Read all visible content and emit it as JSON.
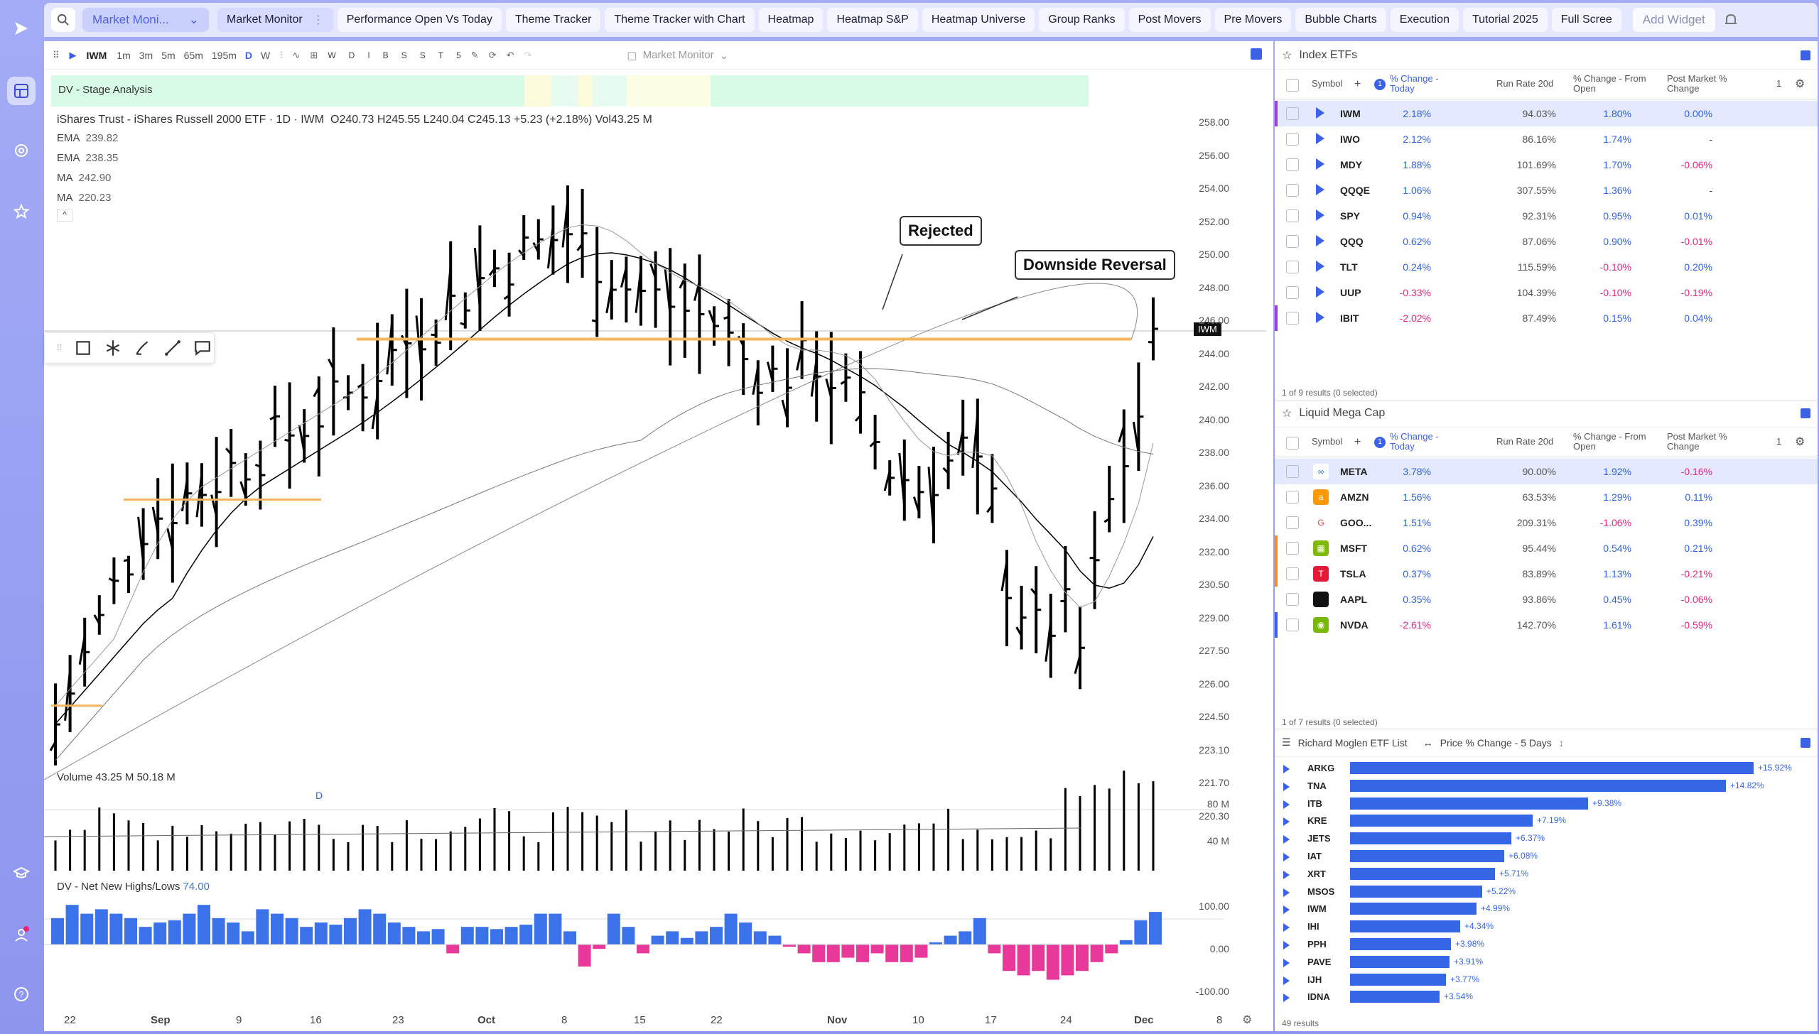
{
  "colors": {
    "accent": "#3b62e6",
    "positive": "#2f62e6",
    "negative": "#e8267c",
    "orange_level": "#f5b55e"
  },
  "rail": {
    "icons": [
      "logo-icon",
      "dashboard-icon",
      "activity-icon",
      "star-icon",
      "graduation-icon",
      "user-crown-icon",
      "help-icon"
    ]
  },
  "topbar": {
    "layout": "Market Moni...",
    "tabs": [
      "Market Monitor",
      "Performance Open Vs Today",
      "Theme Tracker",
      "Theme Tracker with Chart",
      "Heatmap",
      "Heatmap S&P",
      "Heatmap Universe",
      "Group Ranks",
      "Post Movers",
      "Pre Movers",
      "Bubble Charts",
      "Execution",
      "Tutorial 2025",
      "Full Scree"
    ],
    "add_widget": "Add Widget"
  },
  "chart": {
    "toolbar": {
      "symbol": "IWM",
      "intervals": [
        "1m",
        "3m",
        "5m",
        "65m",
        "195m",
        "D",
        "W"
      ],
      "letters": [
        "W",
        "D",
        "I",
        "B",
        "S",
        "S",
        "T",
        "5"
      ],
      "layout_name": "Market Monitor"
    },
    "stage_label": "DV - Stage Analysis",
    "title": "iShares Trust - iShares Russell 2000 ETF · 1D · IWM",
    "ohlc": "O240.73  H245.55  L240.04  C245.13  +5.23 (+2.18%)  Vol43.25 M",
    "indicators": [
      {
        "name": "EMA",
        "value": "239.82"
      },
      {
        "name": "EMA",
        "value": "238.35"
      },
      {
        "name": "MA",
        "value": "242.90"
      },
      {
        "name": "MA",
        "value": "220.23"
      }
    ],
    "callouts": {
      "rejected": "Rejected",
      "reversal": "Downside Reversal"
    },
    "symbol_tag": "IWM",
    "d_marker": "D",
    "volume_label": "Volume  43.25 M  50.18 M",
    "nnh_label": "DV - Net New Highs/Lows",
    "nnh_value": "74.00",
    "y_ticks": [
      "258.00",
      "256.00",
      "254.00",
      "252.00",
      "250.00",
      "248.00",
      "246.00",
      "244.00",
      "242.00",
      "240.00",
      "238.00",
      "236.00",
      "234.00",
      "232.00",
      "230.50",
      "229.00",
      "227.50",
      "226.00",
      "224.50",
      "223.10",
      "221.70",
      "220.30"
    ],
    "vol_ticks": [
      "80 M",
      "40 M"
    ],
    "nnh_ticks": [
      "100.00",
      "0.00",
      "-100.00"
    ],
    "x_ticks": [
      {
        "t": "22",
        "b": false
      },
      {
        "t": "Sep",
        "b": true
      },
      {
        "t": "9",
        "b": false
      },
      {
        "t": "16",
        "b": false
      },
      {
        "t": "23",
        "b": false
      },
      {
        "t": "Oct",
        "b": true
      },
      {
        "t": "8",
        "b": false
      },
      {
        "t": "15",
        "b": false
      },
      {
        "t": "22",
        "b": false
      },
      {
        "t": "Nov",
        "b": true
      },
      {
        "t": "10",
        "b": false
      },
      {
        "t": "17",
        "b": false
      },
      {
        "t": "24",
        "b": false
      },
      {
        "t": "Dec",
        "b": true
      },
      {
        "t": "8",
        "b": false
      }
    ]
  },
  "index_etfs": {
    "title": "Index ETFs",
    "headers": {
      "symbol": "Symbol",
      "pct": "% Change - Today",
      "rr": "Run Rate 20d",
      "fo": "% Change - From Open",
      "pm": "Post Market % Change",
      "count": "1"
    },
    "rows": [
      {
        "sym": "IWM",
        "pct": "2.18%",
        "rr": "94.03%",
        "fo": "1.80%",
        "pm": "0.00%"
      },
      {
        "sym": "IWO",
        "pct": "2.12%",
        "rr": "86.16%",
        "fo": "1.74%",
        "pm": "-"
      },
      {
        "sym": "MDY",
        "pct": "1.88%",
        "rr": "101.69%",
        "fo": "1.70%",
        "pm": "-0.06%"
      },
      {
        "sym": "QQQE",
        "pct": "1.06%",
        "rr": "307.55%",
        "fo": "1.36%",
        "pm": "-"
      },
      {
        "sym": "SPY",
        "pct": "0.94%",
        "rr": "92.31%",
        "fo": "0.95%",
        "pm": "0.01%"
      },
      {
        "sym": "QQQ",
        "pct": "0.62%",
        "rr": "87.06%",
        "fo": "0.90%",
        "pm": "-0.01%"
      },
      {
        "sym": "TLT",
        "pct": "0.24%",
        "rr": "115.59%",
        "fo": "-0.10%",
        "pm": "0.20%"
      },
      {
        "sym": "UUP",
        "pct": "-0.33%",
        "rr": "104.39%",
        "fo": "-0.10%",
        "pm": "-0.19%"
      },
      {
        "sym": "IBIT",
        "pct": "-2.02%",
        "rr": "87.49%",
        "fo": "0.15%",
        "pm": "0.04%"
      }
    ],
    "footer": "1 of 9 results (0 selected)"
  },
  "mega_cap": {
    "title": "Liquid Mega Cap",
    "rows": [
      {
        "sym": "META",
        "pct": "3.78%",
        "rr": "90.00%",
        "fo": "1.92%",
        "pm": "-0.16%"
      },
      {
        "sym": "AMZN",
        "pct": "1.56%",
        "rr": "63.53%",
        "fo": "1.29%",
        "pm": "0.11%"
      },
      {
        "sym": "GOO...",
        "pct": "1.51%",
        "rr": "209.31%",
        "fo": "-1.06%",
        "pm": "0.39%"
      },
      {
        "sym": "MSFT",
        "pct": "0.62%",
        "rr": "95.44%",
        "fo": "0.54%",
        "pm": "0.21%"
      },
      {
        "sym": "TSLA",
        "pct": "0.37%",
        "rr": "83.89%",
        "fo": "1.13%",
        "pm": "-0.21%"
      },
      {
        "sym": "AAPL",
        "pct": "0.35%",
        "rr": "93.86%",
        "fo": "0.45%",
        "pm": "-0.06%"
      },
      {
        "sym": "NVDA",
        "pct": "-2.61%",
        "rr": "142.70%",
        "fo": "1.61%",
        "pm": "-0.59%"
      }
    ],
    "footer": "1 of 7 results (0 selected)"
  },
  "moglen": {
    "title": "Richard Moglen ETF List",
    "metric": "Price % Change - 5 Days",
    "rows": [
      {
        "sym": "ARKG",
        "val": 15.92,
        "label": "+15.92%"
      },
      {
        "sym": "TNA",
        "val": 14.82,
        "label": "+14.82%"
      },
      {
        "sym": "ITB",
        "val": 9.38,
        "label": "+9.38%"
      },
      {
        "sym": "KRE",
        "val": 7.19,
        "label": "+7.19%"
      },
      {
        "sym": "JETS",
        "val": 6.37,
        "label": "+6.37%"
      },
      {
        "sym": "IAT",
        "val": 6.08,
        "label": "+6.08%"
      },
      {
        "sym": "XRT",
        "val": 5.71,
        "label": "+5.71%"
      },
      {
        "sym": "MSOS",
        "val": 5.22,
        "label": "+5.22%"
      },
      {
        "sym": "IWM",
        "val": 4.99,
        "label": "+4.99%"
      },
      {
        "sym": "IHI",
        "val": 4.34,
        "label": "+4.34%"
      },
      {
        "sym": "PPH",
        "val": 3.98,
        "label": "+3.98%"
      },
      {
        "sym": "PAVE",
        "val": 3.91,
        "label": "+3.91%"
      },
      {
        "sym": "IJH",
        "val": 3.77,
        "label": "+3.77%"
      },
      {
        "sym": "IDNA",
        "val": 3.54,
        "label": "+3.54%"
      }
    ],
    "footer": "49 results"
  }
}
